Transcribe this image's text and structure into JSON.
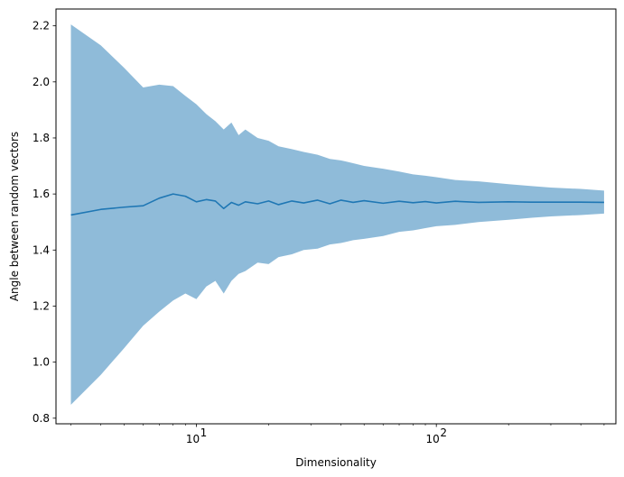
{
  "chart_data": {
    "type": "line",
    "title": "",
    "xlabel": "Dimensionality",
    "ylabel": "Angle between random vectors",
    "xscale": "log",
    "xlim": [
      2.6,
      560
    ],
    "ylim": [
      0.78,
      2.26
    ],
    "xticks": [
      {
        "value": 10,
        "base": "10",
        "exp": "1"
      },
      {
        "value": 100,
        "base": "10",
        "exp": "2"
      }
    ],
    "yticks": [
      "0.8",
      "1.0",
      "1.2",
      "1.4",
      "1.6",
      "1.8",
      "2.0",
      "2.2"
    ],
    "grid": false,
    "colors": {
      "line": "#1f77b4",
      "band": "#1f77b4",
      "band_opacity": 0.5
    },
    "series": [
      {
        "kind": "mean",
        "x": [
          3,
          4,
          5,
          6,
          7,
          8,
          9,
          10,
          11,
          12,
          13,
          14,
          15,
          16,
          18,
          20,
          22,
          25,
          28,
          32,
          36,
          40,
          45,
          50,
          60,
          70,
          80,
          90,
          100,
          120,
          150,
          200,
          250,
          300,
          400,
          500
        ],
        "y": [
          1.525,
          1.545,
          1.553,
          1.558,
          1.585,
          1.6,
          1.592,
          1.572,
          1.58,
          1.575,
          1.548,
          1.57,
          1.56,
          1.572,
          1.565,
          1.575,
          1.562,
          1.575,
          1.568,
          1.578,
          1.565,
          1.578,
          1.57,
          1.576,
          1.567,
          1.574,
          1.569,
          1.573,
          1.568,
          1.574,
          1.57,
          1.572,
          1.571,
          1.571,
          1.571,
          1.57
        ]
      },
      {
        "kind": "band",
        "x": [
          3,
          4,
          5,
          6,
          7,
          8,
          9,
          10,
          11,
          12,
          13,
          14,
          15,
          16,
          18,
          20,
          22,
          25,
          28,
          32,
          36,
          40,
          45,
          50,
          60,
          70,
          80,
          90,
          100,
          120,
          150,
          200,
          250,
          300,
          400,
          500
        ],
        "upper": [
          2.205,
          2.13,
          2.05,
          1.98,
          1.99,
          1.985,
          1.95,
          1.92,
          1.885,
          1.86,
          1.83,
          1.855,
          1.81,
          1.83,
          1.8,
          1.79,
          1.77,
          1.76,
          1.75,
          1.74,
          1.725,
          1.72,
          1.71,
          1.7,
          1.69,
          1.68,
          1.67,
          1.665,
          1.66,
          1.65,
          1.645,
          1.635,
          1.628,
          1.623,
          1.618,
          1.612
        ],
        "lower": [
          0.848,
          0.955,
          1.05,
          1.13,
          1.18,
          1.22,
          1.245,
          1.225,
          1.27,
          1.29,
          1.245,
          1.29,
          1.315,
          1.325,
          1.355,
          1.35,
          1.375,
          1.385,
          1.4,
          1.405,
          1.42,
          1.425,
          1.435,
          1.44,
          1.45,
          1.465,
          1.47,
          1.478,
          1.485,
          1.49,
          1.5,
          1.508,
          1.515,
          1.52,
          1.525,
          1.53
        ]
      }
    ]
  }
}
